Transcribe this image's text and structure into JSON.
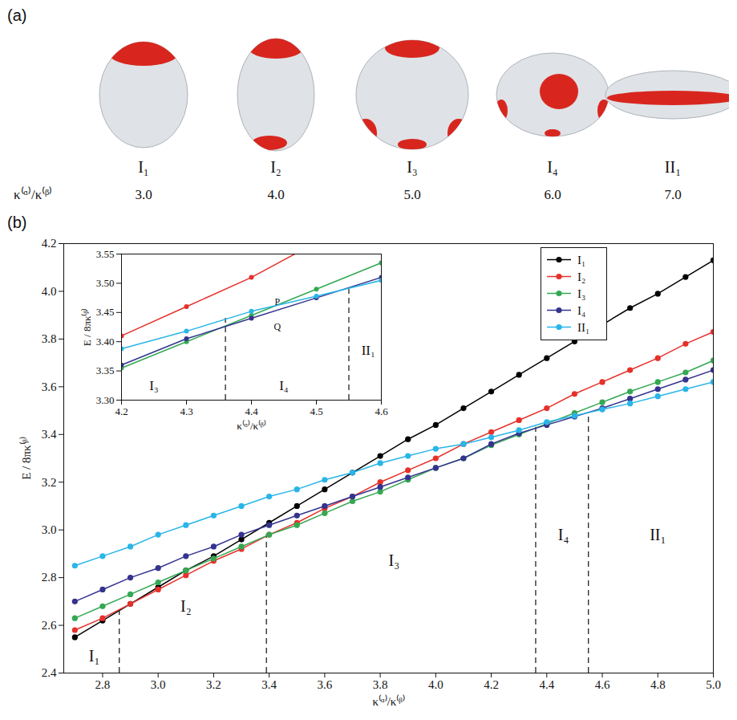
{
  "chart_data": {
    "type": "line",
    "panel_label": "(b)",
    "x_label": "κ⁽ᵅ⁾/κ⁽ᵝ⁾",
    "y_label": "E / 8πκ⁽ᵝ⁾",
    "marker": "circle",
    "line_style": "solid",
    "grid": false,
    "legend": "top-right",
    "xlim": [
      2.66,
      5.0
    ],
    "xticks": [
      2.8,
      {
        "value": 3.0,
        "label": "3.0"
      },
      3.2,
      3.4,
      3.6,
      3.8,
      {
        "value": 4.0,
        "label": "4.0"
      },
      4.2,
      4.4,
      4.6,
      4.8,
      {
        "value": 5.0,
        "label": "5.0"
      }
    ],
    "ylim": [
      2.4,
      4.2
    ],
    "yticks": [
      2.4,
      2.6,
      2.8,
      {
        "value": 3.0,
        "label": "3.0"
      },
      3.2,
      3.4,
      3.6,
      3.8,
      {
        "value": 4.0,
        "label": "4.0"
      },
      4.2
    ],
    "x": [
      2.7,
      2.8,
      2.9,
      3.0,
      3.1,
      3.2,
      3.3,
      3.4,
      3.5,
      3.6,
      3.7,
      3.8,
      3.9,
      4.0,
      4.1,
      4.2,
      4.3,
      4.4,
      4.5,
      4.6,
      4.7,
      4.8,
      4.9,
      5.0
    ],
    "series": [
      {
        "name": "I₁",
        "color": "#000000",
        "values": [
          2.55,
          2.62,
          2.69,
          2.76,
          2.83,
          2.89,
          2.96,
          3.03,
          3.1,
          3.17,
          3.24,
          3.31,
          3.38,
          3.44,
          3.51,
          3.58,
          3.65,
          3.72,
          3.79,
          3.86,
          3.93,
          3.99,
          4.06,
          4.13
        ]
      },
      {
        "name": "I₂",
        "color": "#e6312b",
        "values": [
          2.58,
          2.63,
          2.69,
          2.75,
          2.81,
          2.87,
          2.92,
          2.98,
          3.03,
          3.09,
          3.14,
          3.2,
          3.25,
          3.3,
          3.36,
          3.41,
          3.46,
          3.51,
          3.57,
          3.62,
          3.67,
          3.72,
          3.78,
          3.83
        ]
      },
      {
        "name": "I₃",
        "color": "#34a853",
        "values": [
          2.63,
          2.68,
          2.73,
          2.78,
          2.83,
          2.88,
          2.93,
          2.98,
          3.02,
          3.07,
          3.12,
          3.16,
          3.21,
          3.26,
          3.3,
          3.355,
          3.4,
          3.445,
          3.49,
          3.535,
          3.58,
          3.62,
          3.66,
          3.71
        ]
      },
      {
        "name": "I₄",
        "color": "#34338f",
        "values": [
          2.7,
          2.75,
          2.8,
          2.84,
          2.89,
          2.93,
          2.98,
          3.02,
          3.06,
          3.1,
          3.14,
          3.18,
          3.22,
          3.26,
          3.3,
          3.36,
          3.405,
          3.44,
          3.475,
          3.51,
          3.55,
          3.59,
          3.63,
          3.67
        ]
      },
      {
        "name": "II₁",
        "color": "#29b5e8",
        "values": [
          2.85,
          2.89,
          2.93,
          2.98,
          3.02,
          3.06,
          3.1,
          3.14,
          3.17,
          3.21,
          3.24,
          3.28,
          3.31,
          3.34,
          3.36,
          3.388,
          3.418,
          3.452,
          3.478,
          3.505,
          3.53,
          3.56,
          3.59,
          3.62
        ]
      }
    ],
    "boundaries": [
      {
        "x": 2.86,
        "y_end": 2.67
      },
      {
        "x": 3.39,
        "y_end": 2.98
      },
      {
        "x": 4.36,
        "y_end": 3.43
      },
      {
        "x": 4.55,
        "y_end": 3.49
      }
    ],
    "regions": [
      {
        "label": "I₁",
        "x": 2.77,
        "y": 2.47
      },
      {
        "label": "I₂",
        "x": 3.1,
        "y": 2.68
      },
      {
        "label": "I₃",
        "x": 3.85,
        "y": 2.87
      },
      {
        "label": "I₄",
        "x": 4.46,
        "y": 2.98
      },
      {
        "label": "II₁",
        "x": 4.8,
        "y": 2.98
      }
    ],
    "inset": {
      "xlim": [
        4.2,
        4.6
      ],
      "xticks": [
        4.2,
        4.3,
        4.4,
        4.5,
        4.6
      ],
      "ylim": [
        3.3,
        3.55
      ],
      "yticks": [
        {
          "value": 3.3,
          "label": "3.30"
        },
        3.35,
        {
          "value": 3.4,
          "label": "3.40"
        },
        3.45,
        {
          "value": 3.5,
          "label": "3.50"
        },
        3.55
      ],
      "boundaries": [
        {
          "x": 4.36,
          "y_end": 3.44
        },
        {
          "x": 4.55,
          "y_end": 3.49
        }
      ],
      "regions": [
        {
          "label": "I₃",
          "x": 4.25,
          "y": 3.325
        },
        {
          "label": "I₄",
          "x": 4.45,
          "y": 3.325
        },
        {
          "label": "II₁",
          "x": 4.58,
          "y": 3.385
        }
      ],
      "points": [
        {
          "label": "P",
          "x": 4.44,
          "y": 3.468
        },
        {
          "label": "Q",
          "x": 4.44,
          "y": 3.425
        }
      ]
    }
  },
  "shapes_panel": {
    "panel_label": "(a)",
    "row_label": "κ⁽ᵅ⁾/κ⁽ᵝ⁾",
    "items": [
      {
        "name": "I₁",
        "ratio": {
          "value": 3.0,
          "label": "3.0"
        }
      },
      {
        "name": "I₂",
        "ratio": {
          "value": 4.0,
          "label": "4.0"
        }
      },
      {
        "name": "I₃",
        "ratio": {
          "value": 5.0,
          "label": "5.0"
        }
      },
      {
        "name": "I₄",
        "ratio": {
          "value": 6.0,
          "label": "6.0"
        }
      },
      {
        "name": "II₁",
        "ratio": {
          "value": 7.0,
          "label": "7.0"
        }
      }
    ]
  }
}
